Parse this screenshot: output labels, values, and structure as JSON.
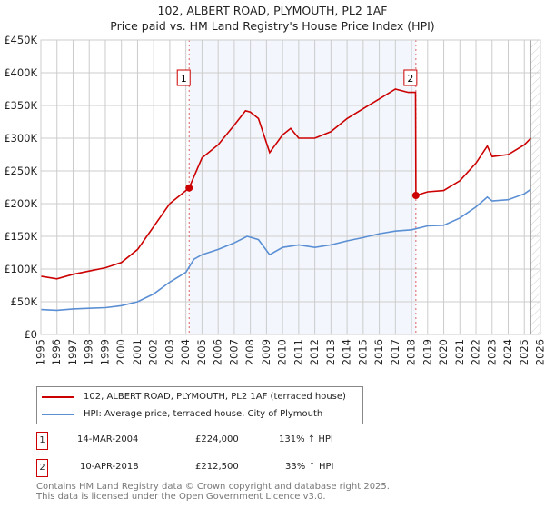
{
  "chart_data": {
    "type": "line",
    "title": "102, ALBERT ROAD, PLYMOUTH, PL2 1AF",
    "subtitle": "Price paid vs. HM Land Registry's House Price Index (HPI)",
    "xlim": [
      1995,
      2026
    ],
    "ylim": [
      0,
      450000
    ],
    "x_ticks": [
      "1995",
      "1996",
      "1997",
      "1998",
      "1999",
      "2000",
      "2001",
      "2002",
      "2003",
      "2004",
      "2005",
      "2006",
      "2007",
      "2008",
      "2009",
      "2010",
      "2011",
      "2012",
      "2013",
      "2014",
      "2015",
      "2016",
      "2017",
      "2018",
      "2019",
      "2020",
      "2021",
      "2022",
      "2023",
      "2024",
      "2025",
      "2026"
    ],
    "y_ticks": [
      {
        "v": 0,
        "label": "£0"
      },
      {
        "v": 50000,
        "label": "£50K"
      },
      {
        "v": 100000,
        "label": "£100K"
      },
      {
        "v": 150000,
        "label": "£150K"
      },
      {
        "v": 200000,
        "label": "£200K"
      },
      {
        "v": 250000,
        "label": "£250K"
      },
      {
        "v": 300000,
        "label": "£300K"
      },
      {
        "v": 350000,
        "label": "£350K"
      },
      {
        "v": 400000,
        "label": "£400K"
      },
      {
        "v": 450000,
        "label": "£450K"
      }
    ],
    "grid": true,
    "shaded_range": [
      2004.2,
      2018.27
    ],
    "future_hatch_from": 2025.4,
    "series": [
      {
        "name": "102, ALBERT ROAD, PLYMOUTH, PL2 1AF (terraced house)",
        "color": "#cc0000",
        "x": [
          1995,
          1996,
          1997,
          1998,
          1999,
          2000,
          2001,
          2002,
          2003,
          2004.2,
          2005,
          2006,
          2007,
          2007.7,
          2008,
          2008.5,
          2009.2,
          2010,
          2010.5,
          2011,
          2012,
          2013,
          2014,
          2015,
          2016,
          2017,
          2017.8,
          2018.25,
          2018.27,
          2019,
          2020,
          2021,
          2022,
          2022.7,
          2023,
          2024,
          2025,
          2025.4
        ],
        "y": [
          89000,
          85000,
          92000,
          97000,
          102000,
          110000,
          130000,
          165000,
          200000,
          224000,
          270000,
          290000,
          320000,
          342000,
          340000,
          330000,
          278000,
          305000,
          315000,
          300000,
          300000,
          310000,
          330000,
          345000,
          360000,
          375000,
          370000,
          370000,
          212500,
          218000,
          220000,
          235000,
          262000,
          288000,
          272000,
          275000,
          290000,
          300000
        ]
      },
      {
        "name": "HPI: Average price, terraced house, City of Plymouth",
        "color": "#5b8fd4",
        "x": [
          1995,
          1996,
          1997,
          1998,
          1999,
          2000,
          2001,
          2002,
          2003,
          2004,
          2004.5,
          2005,
          2006,
          2007,
          2007.8,
          2008.5,
          2009.2,
          2010,
          2011,
          2012,
          2013,
          2014,
          2015,
          2016,
          2017,
          2018,
          2019,
          2020,
          2021,
          2022,
          2022.7,
          2023,
          2024,
          2025,
          2025.4
        ],
        "y": [
          38000,
          37000,
          39000,
          40000,
          41000,
          44000,
          50000,
          62000,
          80000,
          95000,
          115000,
          122000,
          130000,
          140000,
          150000,
          145000,
          122000,
          133000,
          137000,
          133000,
          137000,
          143000,
          148000,
          154000,
          158000,
          160000,
          166000,
          167000,
          178000,
          195000,
          210000,
          204000,
          206000,
          215000,
          222000
        ]
      }
    ],
    "sales": [
      {
        "label": "1",
        "x": 2004.2,
        "y": 224000,
        "date": "14-MAR-2004",
        "price": "£224,000",
        "hpi": "131% ↑ HPI"
      },
      {
        "label": "2",
        "x": 2018.27,
        "y": 212500,
        "date": "10-APR-2018",
        "price": "£212,500",
        "hpi": "33% ↑ HPI"
      }
    ]
  },
  "footer": {
    "line1": "Contains HM Land Registry data © Crown copyright and database right 2025.",
    "line2": "This data is licensed under the Open Government Licence v3.0."
  }
}
